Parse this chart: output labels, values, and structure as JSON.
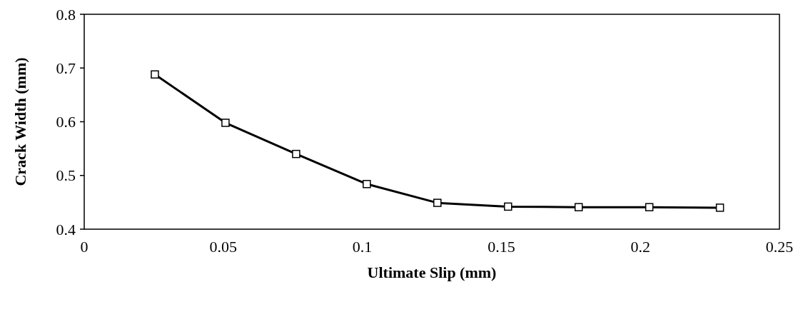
{
  "chart_data": {
    "type": "line",
    "xlabel": "Ultimate Slip (mm)",
    "ylabel": "Crack Width (mm)",
    "x": [
      0.0254,
      0.0508,
      0.0762,
      0.1016,
      0.127,
      0.1524,
      0.1778,
      0.2032,
      0.2286
    ],
    "series": [
      {
        "color": "#000000",
        "values": [
          0.688,
          0.598,
          0.54,
          0.484,
          0.449,
          0.442,
          0.441,
          0.441,
          0.44
        ]
      }
    ],
    "xlim": [
      0,
      0.25
    ],
    "xticks": [
      0,
      0.05,
      0.1,
      0.15,
      0.2,
      0.25
    ],
    "ylim": [
      0.4,
      0.8
    ],
    "yticks": [
      0.4,
      0.5,
      0.6,
      0.7,
      0.8
    ],
    "grid": false,
    "marker": "square",
    "line_style": "solid"
  }
}
